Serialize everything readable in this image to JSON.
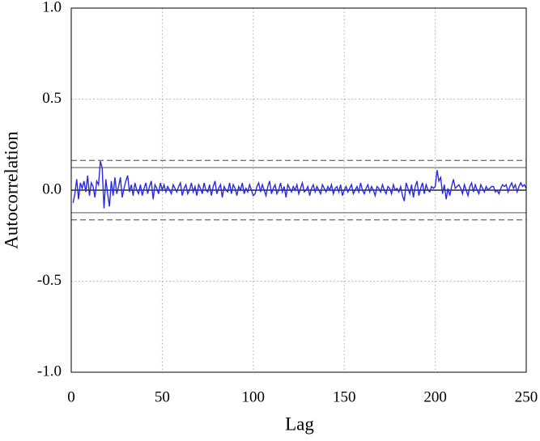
{
  "chart_data": {
    "type": "line",
    "xlabel": "Lag",
    "ylabel": "Autocorrelation",
    "x": [
      1,
      2,
      3,
      4,
      5,
      6,
      7,
      8,
      9,
      10,
      11,
      12,
      13,
      14,
      15,
      16,
      17,
      18,
      19,
      20,
      21,
      22,
      23,
      24,
      25,
      26,
      27,
      28,
      29,
      30,
      31,
      32,
      33,
      34,
      35,
      36,
      37,
      38,
      39,
      40,
      41,
      42,
      43,
      44,
      45,
      46,
      47,
      48,
      49,
      50,
      51,
      52,
      53,
      54,
      55,
      56,
      57,
      58,
      59,
      60,
      61,
      62,
      63,
      64,
      65,
      66,
      67,
      68,
      69,
      70,
      71,
      72,
      73,
      74,
      75,
      76,
      77,
      78,
      79,
      80,
      81,
      82,
      83,
      84,
      85,
      86,
      87,
      88,
      89,
      90,
      91,
      92,
      93,
      94,
      95,
      96,
      97,
      98,
      99,
      100,
      101,
      102,
      103,
      104,
      105,
      106,
      107,
      108,
      109,
      110,
      111,
      112,
      113,
      114,
      115,
      116,
      117,
      118,
      119,
      120,
      121,
      122,
      123,
      124,
      125,
      126,
      127,
      128,
      129,
      130,
      131,
      132,
      133,
      134,
      135,
      136,
      137,
      138,
      139,
      140,
      141,
      142,
      143,
      144,
      145,
      146,
      147,
      148,
      149,
      150,
      151,
      152,
      153,
      154,
      155,
      156,
      157,
      158,
      159,
      160,
      161,
      162,
      163,
      164,
      165,
      166,
      167,
      168,
      169,
      170,
      171,
      172,
      173,
      174,
      175,
      176,
      177,
      178,
      179,
      180,
      181,
      182,
      183,
      184,
      185,
      186,
      187,
      188,
      189,
      190,
      191,
      192,
      193,
      194,
      195,
      196,
      197,
      198,
      199,
      200,
      201,
      202,
      203,
      204,
      205,
      206,
      207,
      208,
      209,
      210,
      211,
      212,
      213,
      214,
      215,
      216,
      217,
      218,
      219,
      220,
      221,
      222,
      223,
      224,
      225,
      226,
      227,
      228,
      229,
      230,
      231,
      232,
      233,
      234,
      235,
      236,
      237,
      238,
      239,
      240,
      241,
      242,
      243,
      244,
      245,
      246,
      247,
      248,
      249,
      250
    ],
    "series": [
      {
        "color": "#2a2ae6",
        "values": [
          -0.07,
          -0.02,
          0.06,
          -0.05,
          0.04,
          0.01,
          0.05,
          -0.01,
          0.08,
          -0.03,
          0.04,
          0.02,
          -0.04,
          0.05,
          0.03,
          0.16,
          0.12,
          -0.1,
          0.06,
          -0.02,
          -0.09,
          0.05,
          -0.03,
          0.07,
          -0.02,
          0.02,
          0.07,
          -0.04,
          0.01,
          0.05,
          0.08,
          -0.01,
          0.03,
          -0.03,
          0.04,
          0.0,
          -0.02,
          0.03,
          -0.03,
          0.01,
          0.04,
          -0.02,
          0.02,
          0.05,
          -0.05,
          0.03,
          0.01,
          -0.02,
          0.04,
          0.0,
          0.03,
          -0.01,
          0.02,
          0.0,
          -0.02,
          0.03,
          0.01,
          -0.01,
          0.02,
          0.04,
          -0.03,
          0.01,
          0.03,
          -0.02,
          0.0,
          0.04,
          -0.01,
          0.02,
          -0.03,
          0.03,
          0.01,
          -0.02,
          0.04,
          0.0,
          -0.01,
          0.03,
          -0.03,
          0.02,
          0.05,
          -0.02,
          0.01,
          0.03,
          -0.04,
          0.02,
          0.0,
          -0.01,
          0.04,
          -0.02,
          0.03,
          0.01,
          -0.03,
          0.02,
          0.0,
          0.04,
          -0.02,
          0.01,
          -0.01,
          0.03,
          0.0,
          -0.03,
          -0.02,
          0.02,
          0.04,
          -0.01,
          0.03,
          0.0,
          -0.03,
          0.02,
          0.05,
          -0.02,
          0.01,
          0.03,
          -0.02,
          0.0,
          0.04,
          -0.01,
          0.02,
          -0.04,
          0.03,
          0.01,
          -0.01,
          0.02,
          0.0,
          0.03,
          -0.02,
          0.01,
          0.04,
          -0.01,
          0.0,
          0.02,
          -0.03,
          0.01,
          0.03,
          -0.01,
          0.02,
          0.0,
          -0.02,
          0.03,
          0.01,
          -0.01,
          0.02,
          0.0,
          0.03,
          -0.02,
          0.01,
          0.02,
          -0.01,
          0.03,
          -0.03,
          0.0,
          0.02,
          -0.01,
          0.01,
          0.03,
          -0.02,
          0.0,
          0.02,
          -0.01,
          0.04,
          0.0,
          -0.02,
          0.01,
          0.03,
          -0.01,
          0.02,
          0.0,
          -0.03,
          0.02,
          0.01,
          -0.01,
          0.03,
          0.0,
          -0.02,
          0.02,
          0.01,
          -0.02,
          0.03,
          0.0,
          0.01,
          -0.01,
          0.02,
          -0.03,
          -0.06,
          0.04,
          0.01,
          -0.02,
          0.03,
          -0.04,
          0.02,
          0.05,
          -0.03,
          0.01,
          0.04,
          -0.02,
          0.03,
          0.0,
          -0.01,
          0.02,
          0.01,
          0.02,
          0.11,
          0.05,
          0.07,
          -0.02,
          0.03,
          -0.05,
          0.01,
          -0.03,
          0.02,
          0.06,
          0.01,
          0.02,
          0.03,
          0.01,
          -0.02,
          0.03,
          0.0,
          -0.03,
          0.02,
          0.04,
          -0.01,
          0.03,
          0.0,
          -0.02,
          0.03,
          0.01,
          -0.01,
          0.02,
          0.0,
          0.01,
          0.02,
          0.02,
          -0.01,
          0.0,
          -0.02,
          0.01,
          0.03,
          0.02,
          0.03,
          -0.01,
          0.02,
          0.04,
          0.01,
          0.03,
          -0.01,
          0.02,
          0.04,
          0.02,
          0.03,
          0.01
        ]
      }
    ],
    "reference_lines": [
      {
        "value": 0.163,
        "style": "dashed",
        "color": "#777"
      },
      {
        "value": 0.124,
        "style": "solid",
        "color": "#777"
      },
      {
        "value": 0,
        "style": "solid",
        "color": "#000"
      },
      {
        "value": -0.124,
        "style": "solid",
        "color": "#777"
      },
      {
        "value": -0.163,
        "style": "dashed",
        "color": "#777"
      }
    ],
    "xlim": [
      0,
      250
    ],
    "xticks": [
      0,
      50,
      100,
      150,
      200,
      250
    ],
    "ylim": [
      -1,
      1
    ],
    "yticks": [
      {
        "value": -1,
        "label": "-1.0"
      },
      {
        "value": -0.5,
        "label": "-0.5"
      },
      {
        "value": 0,
        "label": "0.0"
      },
      {
        "value": 0.5,
        "label": "0.5"
      },
      {
        "value": 1,
        "label": "1.0"
      }
    ],
    "grid": true
  }
}
